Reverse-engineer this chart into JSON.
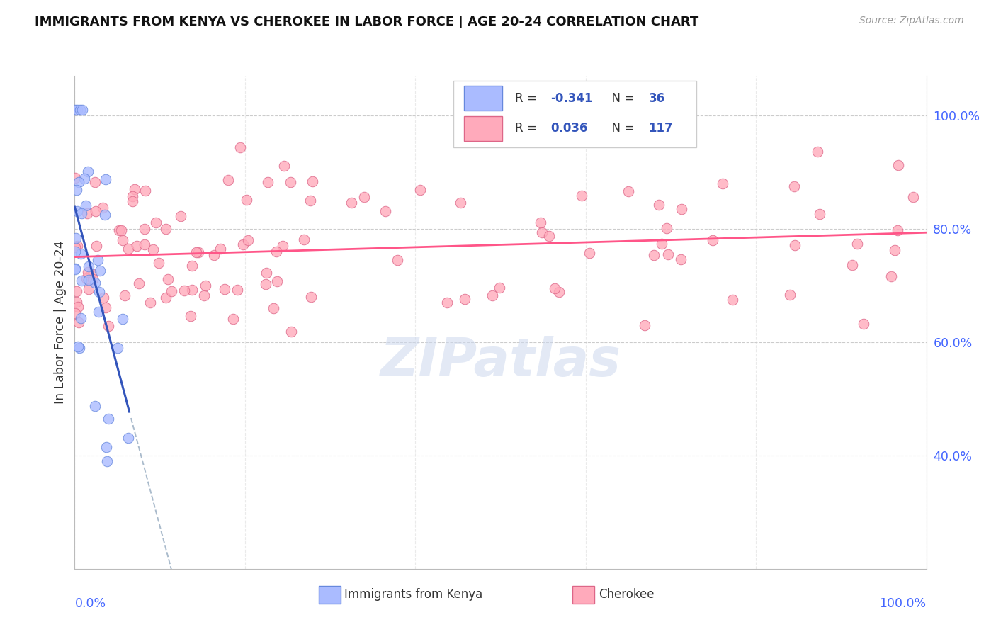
{
  "title": "IMMIGRANTS FROM KENYA VS CHEROKEE IN LABOR FORCE | AGE 20-24 CORRELATION CHART",
  "source": "Source: ZipAtlas.com",
  "ylabel": "In Labor Force | Age 20-24",
  "legend_r_kenya": "-0.341",
  "legend_n_kenya": "36",
  "legend_r_cherokee": "0.036",
  "legend_n_cherokee": "117",
  "kenya_fill": "#aabbff",
  "kenya_edge": "#6688dd",
  "cherokee_fill": "#ffaabb",
  "cherokee_edge": "#dd6688",
  "kenya_line": "#3355bb",
  "kenya_dash": "#aabbcc",
  "cherokee_line": "#ff5588",
  "ytick_color": "#4466ff",
  "xtick_color": "#4466ff",
  "grid_color": "#cccccc",
  "watermark_color": "#ccd8ee",
  "watermark_text": "ZIPatlas",
  "r_color_kenya": "#3355bb",
  "r_color_cherokee": "#3355bb",
  "n_color": "#3355bb",
  "bg": "#ffffff"
}
